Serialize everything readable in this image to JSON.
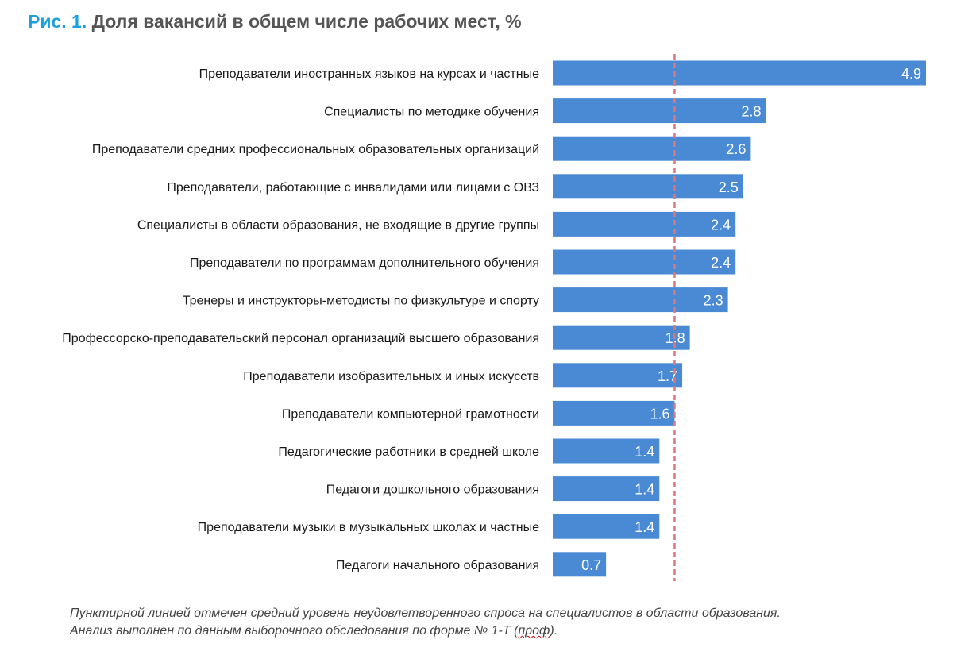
{
  "title": {
    "figure_label": "Рис. 1.",
    "text": "Доля вакансий в общем числе рабочих мест, %"
  },
  "colors": {
    "bar": "#4a8ad4",
    "average_line": "#d9777b",
    "figure_label": "#1aa0dc"
  },
  "chart_data": {
    "type": "bar",
    "orientation": "horizontal",
    "categories": [
      "Преподаватели иностранных языков на курсах и частные",
      "Специалисты по методике обучения",
      "Преподаватели средних профессиональных образовательных организаций",
      "Преподаватели, работающие с инвалидами или лицами с ОВЗ",
      "Специалисты в области образования, не входящие в другие группы",
      "Преподаватели по программам дополнительного обучения",
      "Тренеры и инструкторы-методисты по физкультуре и спорту",
      "Профессорско-преподавательский персонал организаций высшего образования",
      "Преподаватели изобразительных и иных искусств",
      "Преподаватели компьютерной грамотности",
      "Педагогические работники в средней школе",
      "Педагоги дошкольного образования",
      "Преподаватели музыки в музыкальных школах и частные",
      "Педагоги начального образования"
    ],
    "values": [
      4.9,
      2.8,
      2.6,
      2.5,
      2.4,
      2.4,
      2.3,
      1.8,
      1.7,
      1.6,
      1.4,
      1.4,
      1.4,
      0.7
    ],
    "value_labels": [
      "4.9",
      "2.8",
      "2.6",
      "2.5",
      "2.4",
      "2.4",
      "2.3",
      "1.8",
      "1.7",
      "1.6",
      "1.4",
      "1.4",
      "1.4",
      "0.7"
    ],
    "average_line": 1.6,
    "xlim": [
      0,
      4.9
    ],
    "grid": false,
    "legend": "none"
  },
  "note": {
    "line1": "Пунктирной линией отмечен средний уровень неудовлетворенного спроса на специалистов в области образования.",
    "line2_before": "Анализ выполнен по данным выборочного обследования по форме № 1-Т (",
    "line2_squiggle": "проф",
    "line2_after": ")."
  }
}
